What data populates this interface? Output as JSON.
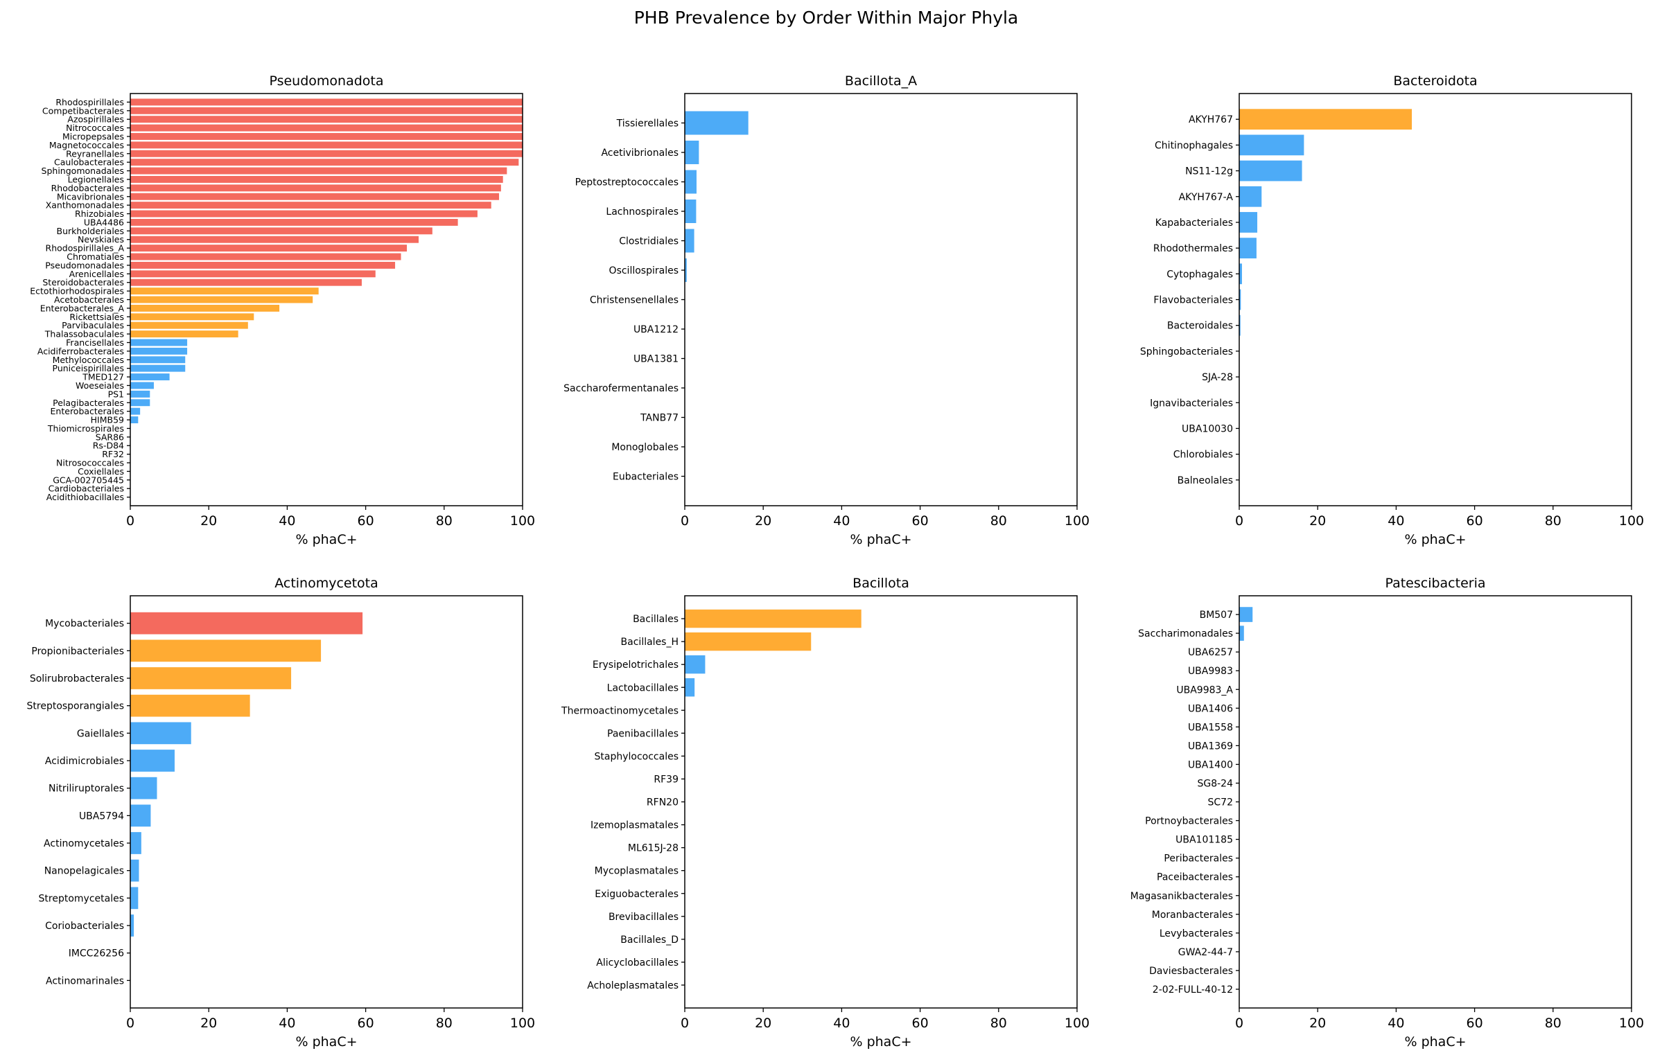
{
  "chart_data": {
    "title": "PHB Prevalence by Order Within Major Phyla",
    "colors": {
      "high": "#f46a5e",
      "medium": "#ffab33",
      "low": "#4dabf7"
    },
    "panels": [
      {
        "title": "Pseudomonadota",
        "type": "bar",
        "orientation": "horizontal",
        "xlabel": "% phaC+",
        "xlim": [
          0,
          100
        ],
        "xticks": [
          "0",
          "20",
          "40",
          "60",
          "80",
          "100"
        ],
        "categories": [
          "Rhodospirillales",
          "Competibacterales",
          "Azospirillales",
          "Nitrococcales",
          "Micropepsales",
          "Magnetococcales",
          "Reyranellales",
          "Caulobacterales",
          "Sphingomonadales",
          "Legionellales",
          "Rhodobacterales",
          "Micavibrionales",
          "Xanthomonadales",
          "Rhizobiales",
          "UBA4486",
          "Burkholderiales",
          "Nevskiales",
          "Rhodospirillales_A",
          "Chromatiales",
          "Pseudomonadales",
          "Arenicellales",
          "Steroidobacterales",
          "Ectothiorhodospirales",
          "Acetobacterales",
          "Enterobacterales_A",
          "Rickettsiales",
          "Parvibaculales",
          "Thalassobaculales",
          "Francisellales",
          "Acidiferrobacterales",
          "Methylococcales",
          "Puniceispirillales",
          "TMED127",
          "Woeseiales",
          "PS1",
          "Pelagibacterales",
          "Enterobacterales",
          "HIMB59",
          "Thiomicrospirales",
          "SAR86",
          "Rs-D84",
          "RF32",
          "Nitrosococcales",
          "Coxiellales",
          "GCA-002705445",
          "Cardiobacteriales",
          "Acidithiobacillales"
        ],
        "values": [
          100,
          100,
          100,
          100,
          100,
          100,
          100,
          99,
          96,
          95,
          94.5,
          94,
          92,
          88.5,
          83.5,
          77,
          73.5,
          70.5,
          69,
          67.5,
          62.5,
          59,
          48,
          46.5,
          38,
          31.5,
          30,
          27.5,
          14.5,
          14.5,
          14,
          14,
          10,
          6,
          5,
          5,
          2.5,
          2,
          0,
          0,
          0,
          0,
          0,
          0,
          0,
          0,
          0
        ],
        "levels": [
          "high",
          "high",
          "high",
          "high",
          "high",
          "high",
          "high",
          "high",
          "high",
          "high",
          "high",
          "high",
          "high",
          "high",
          "high",
          "high",
          "high",
          "high",
          "high",
          "high",
          "high",
          "high",
          "medium",
          "medium",
          "medium",
          "medium",
          "medium",
          "medium",
          "low",
          "low",
          "low",
          "low",
          "low",
          "low",
          "low",
          "low",
          "low",
          "low",
          "low",
          "low",
          "low",
          "low",
          "low",
          "low",
          "low",
          "low",
          "low"
        ]
      },
      {
        "title": "Bacillota_A",
        "type": "bar",
        "orientation": "horizontal",
        "xlabel": "% phaC+",
        "xlim": [
          0,
          100
        ],
        "xticks": [
          "0",
          "20",
          "40",
          "60",
          "80",
          "100"
        ],
        "categories": [
          "Tissierellales",
          "Acetivibrionales",
          "Peptostreptococcales",
          "Lachnospirales",
          "Clostridiales",
          "Oscillospirales",
          "Christensenellales",
          "UBA1212",
          "UBA1381",
          "Saccharofermentanales",
          "TANB77",
          "Monoglobales",
          "Eubacteriales"
        ],
        "values": [
          16.2,
          3.6,
          3,
          2.9,
          2.4,
          0.5,
          0,
          0,
          0,
          0,
          0,
          0,
          0
        ],
        "levels": [
          "low",
          "low",
          "low",
          "low",
          "low",
          "low",
          "low",
          "low",
          "low",
          "low",
          "low",
          "low",
          "low"
        ]
      },
      {
        "title": "Bacteroidota",
        "type": "bar",
        "orientation": "horizontal",
        "xlabel": "% phaC+",
        "xlim": [
          0,
          100
        ],
        "xticks": [
          "0",
          "20",
          "40",
          "60",
          "80",
          "100"
        ],
        "categories": [
          "AKYH767",
          "Chitinophagales",
          "NS11-12g",
          "AKYH767-A",
          "Kapabacteriales",
          "Rhodothermales",
          "Cytophagales",
          "Flavobacteriales",
          "Bacteroidales",
          "Sphingobacteriales",
          "SJA-28",
          "Ignavibacteriales",
          "UBA10030",
          "Chlorobiales",
          "Balneolales"
        ],
        "values": [
          44,
          16.5,
          16,
          5.7,
          4.6,
          4.4,
          0.7,
          0.4,
          0.3,
          0,
          0,
          0,
          0,
          0,
          0
        ],
        "levels": [
          "medium",
          "low",
          "low",
          "low",
          "low",
          "low",
          "low",
          "low",
          "low",
          "low",
          "low",
          "low",
          "low",
          "low",
          "low"
        ]
      },
      {
        "title": "Actinomycetota",
        "type": "bar",
        "orientation": "horizontal",
        "xlabel": "% phaC+",
        "xlim": [
          0,
          100
        ],
        "xticks": [
          "0",
          "20",
          "40",
          "60",
          "80",
          "100"
        ],
        "categories": [
          "Mycobacteriales",
          "Propionibacteriales",
          "Solirubrobacterales",
          "Streptosporangiales",
          "Gaiellales",
          "Acidimicrobiales",
          "Nitriliruptorales",
          "UBA5794",
          "Actinomycetales",
          "Nanopelagicales",
          "Streptomycetales",
          "Coriobacteriales",
          "IMCC26256",
          "Actinomarinales"
        ],
        "values": [
          59.2,
          48.6,
          41,
          30.5,
          15.5,
          11.3,
          6.8,
          5.2,
          2.8,
          2.2,
          2,
          0.9,
          0,
          0
        ],
        "levels": [
          "high",
          "medium",
          "medium",
          "medium",
          "low",
          "low",
          "low",
          "low",
          "low",
          "low",
          "low",
          "low",
          "low",
          "low"
        ]
      },
      {
        "title": "Bacillota",
        "type": "bar",
        "orientation": "horizontal",
        "xlabel": "% phaC+",
        "xlim": [
          0,
          100
        ],
        "xticks": [
          "0",
          "20",
          "40",
          "60",
          "80",
          "100"
        ],
        "categories": [
          "Bacillales",
          "Bacillales_H",
          "Erysipelotrichales",
          "Lactobacillales",
          "Thermoactinomycetales",
          "Paenibacillales",
          "Staphylococcales",
          "RF39",
          "RFN20",
          "Izemoplasmatales",
          "ML615J-28",
          "Mycoplasmatales",
          "Exiguobacterales",
          "Brevibacillales",
          "Bacillales_D",
          "Alicyclobacillales",
          "Acholeplasmatales"
        ],
        "values": [
          45,
          32.2,
          5.2,
          2.5,
          0,
          0,
          0,
          0,
          0,
          0,
          0,
          0,
          0,
          0,
          0,
          0,
          0
        ],
        "levels": [
          "medium",
          "medium",
          "low",
          "low",
          "low",
          "low",
          "low",
          "low",
          "low",
          "low",
          "low",
          "low",
          "low",
          "low",
          "low",
          "low",
          "low"
        ]
      },
      {
        "title": "Patescibacteria",
        "type": "bar",
        "orientation": "horizontal",
        "xlabel": "% phaC+",
        "xlim": [
          0,
          100
        ],
        "xticks": [
          "0",
          "20",
          "40",
          "60",
          "80",
          "100"
        ],
        "categories": [
          "BM507",
          "Saccharimonadales",
          "UBA6257",
          "UBA9983",
          "UBA9983_A",
          "UBA1406",
          "UBA1558",
          "UBA1369",
          "UBA1400",
          "SG8-24",
          "SC72",
          "Portnoybacterales",
          "UBA101185",
          "Peribacterales",
          "Paceibacterales",
          "Magasanikbacterales",
          "Moranbacterales",
          "Levybacterales",
          "GWA2-44-7",
          "Daviesbacterales",
          "2-02-FULL-40-12"
        ],
        "values": [
          3.4,
          1.2,
          0,
          0,
          0,
          0,
          0,
          0,
          0,
          0,
          0,
          0,
          0,
          0,
          0,
          0,
          0,
          0,
          0,
          0,
          0
        ],
        "levels": [
          "low",
          "low",
          "low",
          "low",
          "low",
          "low",
          "low",
          "low",
          "low",
          "low",
          "low",
          "low",
          "low",
          "low",
          "low",
          "low",
          "low",
          "low",
          "low",
          "low",
          "low"
        ]
      }
    ]
  }
}
